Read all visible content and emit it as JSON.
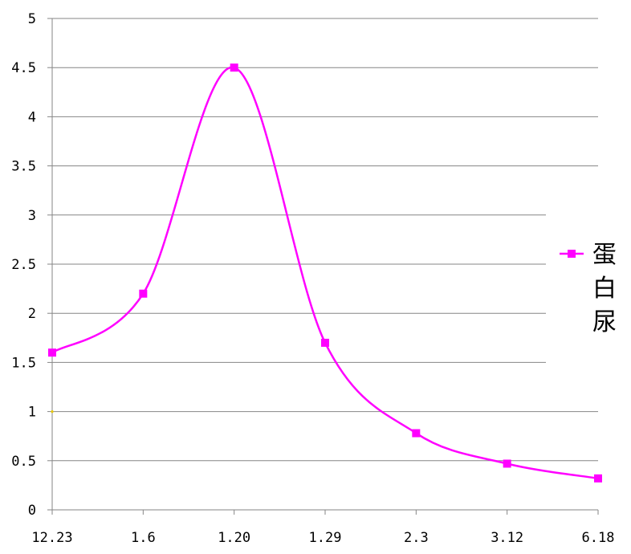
{
  "chart_data": {
    "type": "line",
    "categories": [
      "12.23",
      "1.6",
      "1.20",
      "1.29",
      "2.3",
      "3.12",
      "6.18"
    ],
    "series": [
      {
        "name": "蛋白尿",
        "values": [
          1.6,
          2.2,
          4.5,
          1.7,
          0.78,
          0.47,
          0.32
        ],
        "color": "#ff00ff"
      }
    ],
    "ylim": [
      0,
      5
    ],
    "yticks": [
      "0",
      "0.5",
      "1",
      "1.5",
      "2",
      "2.5",
      "3",
      "3.5",
      "4",
      "4.5",
      "5"
    ],
    "grid": true,
    "legend_placement": "right",
    "smooth": true,
    "marker": "square"
  }
}
